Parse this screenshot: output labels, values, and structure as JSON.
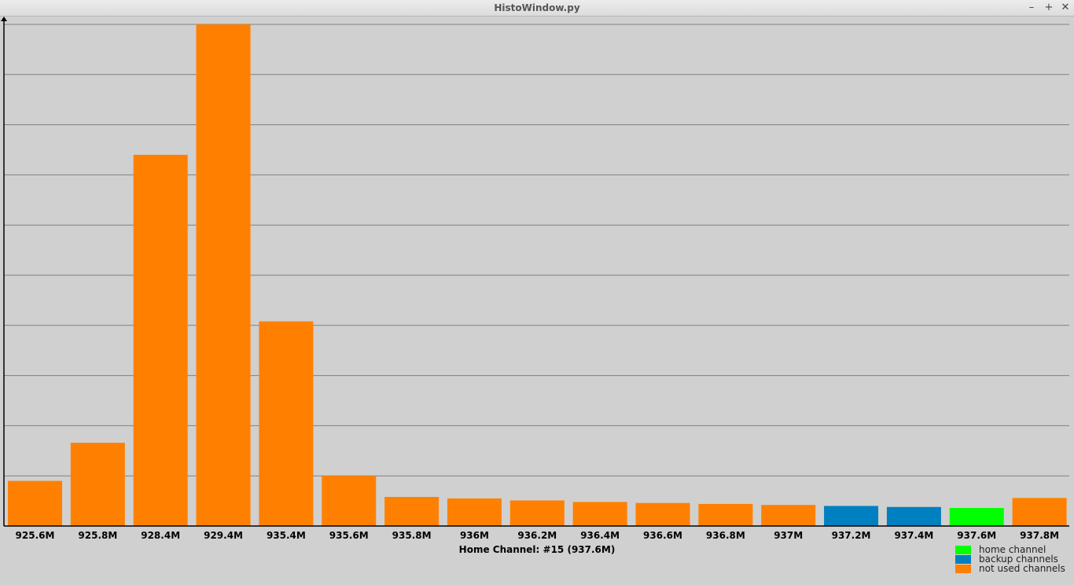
{
  "window": {
    "title": "HistoWindow.py",
    "minimize": "–",
    "maximize": "+",
    "close": "✕"
  },
  "colors": {
    "home": "#00ff00",
    "backup": "#0080c0",
    "unused": "#ff8000",
    "background": "#d0d0d0",
    "grid": "#808080"
  },
  "chart_data": {
    "type": "bar",
    "categories": [
      "925.6M",
      "925.8M",
      "928.4M",
      "929.4M",
      "935.4M",
      "935.6M",
      "935.8M",
      "936M",
      "936.2M",
      "936.4M",
      "936.6M",
      "936.8M",
      "937M",
      "937.2M",
      "937.4M",
      "937.6M",
      "937.8M"
    ],
    "values": [
      9.0,
      16.6,
      74.0,
      100.0,
      40.8,
      10.0,
      5.8,
      5.5,
      5.1,
      4.8,
      4.6,
      4.4,
      4.2,
      4.0,
      3.8,
      3.6,
      5.6
    ],
    "kinds": [
      "unused",
      "unused",
      "unused",
      "unused",
      "unused",
      "unused",
      "unused",
      "unused",
      "unused",
      "unused",
      "unused",
      "unused",
      "unused",
      "backup",
      "backup",
      "home",
      "unused"
    ],
    "ylim": [
      0,
      100
    ],
    "grid": true,
    "xlabel": "Home Channel: #15 (937.6M)",
    "legend": {
      "position": "bottom-right",
      "entries": [
        {
          "label": "home channel",
          "kind": "home"
        },
        {
          "label": "backup channels",
          "kind": "backup"
        },
        {
          "label": "not used channels",
          "kind": "unused"
        }
      ]
    }
  }
}
